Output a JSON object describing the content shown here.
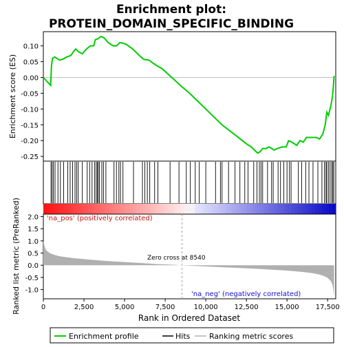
{
  "title_line1": "Enrichment plot:",
  "title_line2": "PROTEIN_DOMAIN_SPECIFIC_BINDING",
  "colors": {
    "es_line": "#00cc00",
    "hits": "#000000",
    "metric_fill": "#b0b0b0",
    "pos_label": "#d01010",
    "neg_label": "#1010d0",
    "zero_dash": "#a0a0a0"
  },
  "legend": {
    "enrichment_profile": "Enrichment profile",
    "hits": "Hits",
    "ranking_metric_scores": "Ranking metric scores"
  },
  "labels": {
    "na_pos": "'na_pos' (positively correlated)",
    "na_neg": "'na_neg' (negatively correlated)",
    "zero_cross": "Zero cross at 8540"
  },
  "chart_data": [
    {
      "type": "line",
      "name": "enrichment-profile",
      "ylabel": "Enrichment score (ES)",
      "xlim": [
        0,
        18000
      ],
      "ylim": [
        -0.265,
        0.145
      ],
      "yticks": [
        -0.25,
        -0.2,
        -0.15,
        -0.1,
        -0.05,
        0.0,
        0.05,
        0.1
      ],
      "ytick_labels": [
        "-0.25",
        "-0.20",
        "-0.15",
        "-0.10",
        "-0.05",
        "0.00",
        "0.05",
        "0.10"
      ],
      "grid": false,
      "x": [
        0,
        450,
        500,
        560,
        700,
        1000,
        1200,
        1450,
        1700,
        1900,
        2000,
        2200,
        2400,
        2650,
        2900,
        3100,
        3200,
        3350,
        3550,
        3750,
        4000,
        4300,
        4500,
        4700,
        4800,
        5100,
        5500,
        6000,
        6200,
        6500,
        6900,
        7300,
        7800,
        8540,
        9000,
        9500,
        10000,
        10500,
        11000,
        11500,
        12000,
        12500,
        12800,
        13000,
        13200,
        13350,
        13500,
        13700,
        13900,
        14200,
        14400,
        14700,
        14950,
        15100,
        15300,
        15600,
        15800,
        16000,
        16200,
        16500,
        16800,
        17000,
        17200,
        17350,
        17450,
        17550,
        17700,
        17800,
        17850,
        17900
      ],
      "y": [
        0.0,
        -0.025,
        0.035,
        0.06,
        0.065,
        0.055,
        0.058,
        0.065,
        0.07,
        0.085,
        0.09,
        0.08,
        0.075,
        0.09,
        0.1,
        0.1,
        0.12,
        0.122,
        0.13,
        0.125,
        0.11,
        0.1,
        0.1,
        0.11,
        0.11,
        0.105,
        0.09,
        0.065,
        0.057,
        0.055,
        0.04,
        0.028,
        0.005,
        -0.03,
        -0.05,
        -0.075,
        -0.1,
        -0.125,
        -0.15,
        -0.17,
        -0.19,
        -0.21,
        -0.22,
        -0.23,
        -0.24,
        -0.235,
        -0.225,
        -0.225,
        -0.22,
        -0.23,
        -0.225,
        -0.22,
        -0.22,
        -0.2,
        -0.205,
        -0.215,
        -0.2,
        -0.205,
        -0.19,
        -0.19,
        -0.19,
        -0.195,
        -0.18,
        -0.15,
        -0.11,
        -0.12,
        -0.09,
        -0.06,
        -0.03,
        0.005
      ]
    },
    {
      "type": "line",
      "name": "ranked-list-metric",
      "ylabel": "Ranked list metric (PreRanked)",
      "xlabel": "Rank in Ordered Dataset",
      "xlim": [
        0,
        18000
      ],
      "ylim": [
        -1.38,
        2.1
      ],
      "yticks": [
        -1.0,
        -0.5,
        0.0,
        0.5,
        1.0,
        1.5,
        2.0
      ],
      "ytick_labels": [
        "-1.0",
        "-0.5",
        "0.0",
        "0.5",
        "1.0",
        "1.5",
        "2.0"
      ],
      "xticks": [
        0,
        2500,
        5000,
        7500,
        10000,
        12500,
        15000,
        17500
      ],
      "xtick_labels": [
        "0",
        "2,500",
        "5,000",
        "7,500",
        "10,000",
        "12,500",
        "15,000",
        "17,500"
      ],
      "zero_cross": 8540,
      "x": [
        0,
        50,
        100,
        200,
        400,
        700,
        1000,
        1500,
        2000,
        3000,
        4000,
        5000,
        6000,
        7000,
        8000,
        8540,
        9000,
        10000,
        11000,
        12000,
        13000,
        14000,
        15000,
        16000,
        16500,
        17000,
        17300,
        17500,
        17700,
        17800,
        17850,
        17900
      ],
      "y": [
        1.0,
        0.85,
        0.72,
        0.6,
        0.5,
        0.42,
        0.37,
        0.32,
        0.28,
        0.22,
        0.17,
        0.13,
        0.09,
        0.05,
        0.02,
        0.0,
        -0.02,
        -0.05,
        -0.08,
        -0.11,
        -0.14,
        -0.18,
        -0.22,
        -0.28,
        -0.32,
        -0.38,
        -0.45,
        -0.52,
        -0.65,
        -0.8,
        -1.0,
        -1.3
      ]
    },
    {
      "type": "scatter",
      "name": "hits",
      "x": [
        470,
        540,
        620,
        720,
        900,
        1050,
        1250,
        1500,
        1650,
        1800,
        1950,
        2050,
        2150,
        2400,
        2700,
        2850,
        3000,
        3150,
        3250,
        3320,
        3380,
        3450,
        3600,
        3700,
        3850,
        4350,
        4500,
        4650,
        4750,
        4900,
        5550,
        6100,
        6250,
        6400,
        6550,
        6850,
        7050,
        7800,
        8350,
        8800,
        9050,
        9350,
        9600,
        10000,
        10600,
        10900,
        11000,
        11400,
        11800,
        12100,
        12400,
        12600,
        12950,
        13150,
        13300,
        13400,
        13500,
        13800,
        14050,
        14150,
        14450,
        14600,
        14800,
        15000,
        15150,
        15250,
        15700,
        15900,
        16150,
        16350,
        16600,
        16900,
        17150,
        17300,
        17400,
        17450,
        17550,
        17650,
        17750,
        17820,
        17880
      ]
    }
  ]
}
